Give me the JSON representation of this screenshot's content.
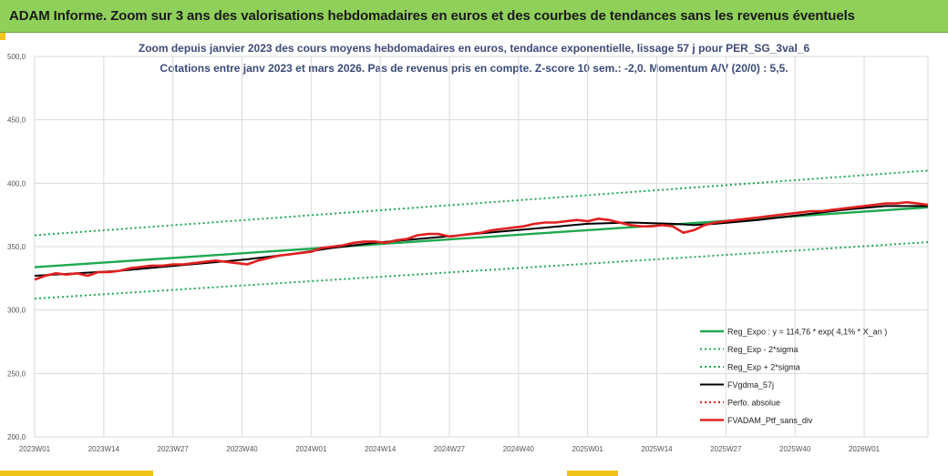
{
  "header": {
    "title": "ADAM Informe. Zoom sur 3 ans des valorisations hebdomadaires en euros et des courbes de tendances sans les revenus éventuels"
  },
  "chart_data": {
    "type": "line",
    "title": "Zoom depuis janvier 2023 des cours moyens hebdomadaires  en euros, tendance exponentielle, lissage 57 j pour PER_SG_3val_6",
    "subtitle": "Cotations  entre janv 2023 et mars 2026. Pas de revenus pris en compte. Z-score 10 sem.: -2,0. Momentum A/V (20/0) : 5,5.",
    "xlabel": "",
    "ylabel": "",
    "ylim": [
      200,
      500
    ],
    "yticks": [
      "200,0",
      "250,0",
      "300,0",
      "350,0",
      "400,0",
      "450,0",
      "500,0"
    ],
    "xticks": [
      "2023W01",
      "2023W14",
      "2023W27",
      "2023W40",
      "2024W01",
      "2024W14",
      "2024W27",
      "2024W40",
      "2025W01",
      "2025W14",
      "2025W27",
      "2025W40",
      "2026W01"
    ],
    "grid": true,
    "legend_position": "bottom-right",
    "x_range_weeks": [
      0,
      168
    ],
    "series": [
      {
        "name": "Reg_Expo : y = 114,76 * exp( 4,1% *  X_an )",
        "color": "#1fa84f",
        "style": "solid",
        "x": [
          0,
          168
        ],
        "values": [
          333.8,
          381.0
        ]
      },
      {
        "name": "Reg_Exp - 2*sigma",
        "color": "#1fa84f",
        "style": "dotted",
        "x": [
          0,
          168
        ],
        "values": [
          309.0,
          353.5
        ]
      },
      {
        "name": "Reg_Exp + 2*sigma",
        "color": "#1fa84f",
        "style": "dotted",
        "x": [
          0,
          168
        ],
        "values": [
          359.0,
          410.0
        ]
      },
      {
        "name": "FVgdma_57j",
        "color": "#000000",
        "style": "solid",
        "x": [
          0,
          8,
          16,
          24,
          32,
          40,
          48,
          56,
          64,
          72,
          80,
          88,
          96,
          104,
          112,
          120,
          124,
          128,
          136,
          144,
          152,
          160,
          168
        ],
        "values": [
          327,
          329,
          331,
          334,
          337,
          340,
          344,
          349,
          353,
          356,
          359,
          362,
          365,
          368,
          369,
          368,
          367,
          368,
          371,
          375,
          379,
          382,
          382
        ]
      },
      {
        "name": "Perfo. absolue",
        "color": "#e02020",
        "style": "dotted",
        "x": [],
        "values": []
      },
      {
        "name": "FVADAM_Ptf_sans_div",
        "color": "#e02020",
        "style": "solid",
        "x": [
          0,
          2,
          4,
          6,
          8,
          10,
          12,
          14,
          16,
          18,
          20,
          22,
          24,
          26,
          28,
          30,
          32,
          34,
          36,
          38,
          40,
          42,
          44,
          46,
          48,
          50,
          52,
          54,
          56,
          58,
          60,
          62,
          64,
          66,
          68,
          70,
          72,
          74,
          76,
          78,
          80,
          82,
          84,
          86,
          88,
          90,
          92,
          94,
          96,
          98,
          100,
          102,
          104,
          106,
          108,
          110,
          112,
          114,
          116,
          118,
          120,
          122,
          124,
          126,
          128,
          130,
          132,
          134,
          136,
          138,
          140,
          142,
          144,
          146,
          148,
          150,
          152,
          154,
          156,
          158,
          160,
          162,
          164,
          166,
          168
        ],
        "values": [
          324,
          327,
          329,
          328,
          329,
          327,
          330,
          330,
          331,
          333,
          334,
          335,
          335,
          336,
          336,
          337,
          338,
          339,
          338,
          337,
          336,
          339,
          341,
          343,
          344,
          345,
          346,
          349,
          350,
          351,
          353,
          354,
          354,
          353,
          355,
          356,
          359,
          360,
          360,
          358,
          359,
          360,
          361,
          363,
          364,
          365,
          366,
          368,
          369,
          369,
          370,
          371,
          370,
          372,
          371,
          369,
          367,
          366,
          366,
          367,
          366,
          361,
          363,
          367,
          369,
          370,
          371,
          372,
          373,
          374,
          375,
          376,
          377,
          378,
          378,
          379,
          380,
          381,
          382,
          383,
          384,
          384,
          385,
          384,
          383
        ]
      }
    ]
  }
}
